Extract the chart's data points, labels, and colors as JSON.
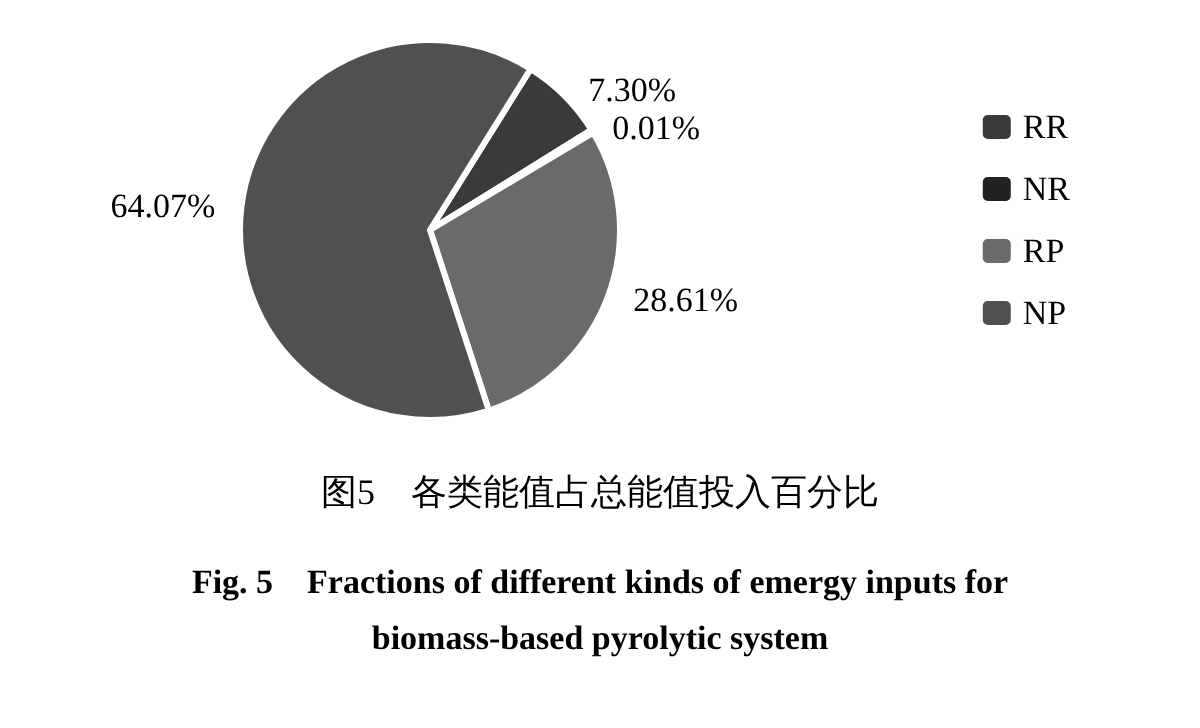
{
  "chart_data": {
    "type": "pie",
    "title": "图5　各类能值占总能值投入百分比",
    "subtitle": "Fig. 5　Fractions of different kinds of emergy inputs for\nbiomass-based pyrolytic system",
    "categories": [
      "RR",
      "NR",
      "RP",
      "NP"
    ],
    "values": [
      7.3,
      0.01,
      28.61,
      64.07
    ],
    "value_labels": [
      "7.30%",
      "0.01%",
      "28.61%",
      "64.07%"
    ],
    "colors": [
      "#3a3a3a",
      "#222222",
      "#6a6a6a",
      "#505050"
    ],
    "legend": "right"
  }
}
